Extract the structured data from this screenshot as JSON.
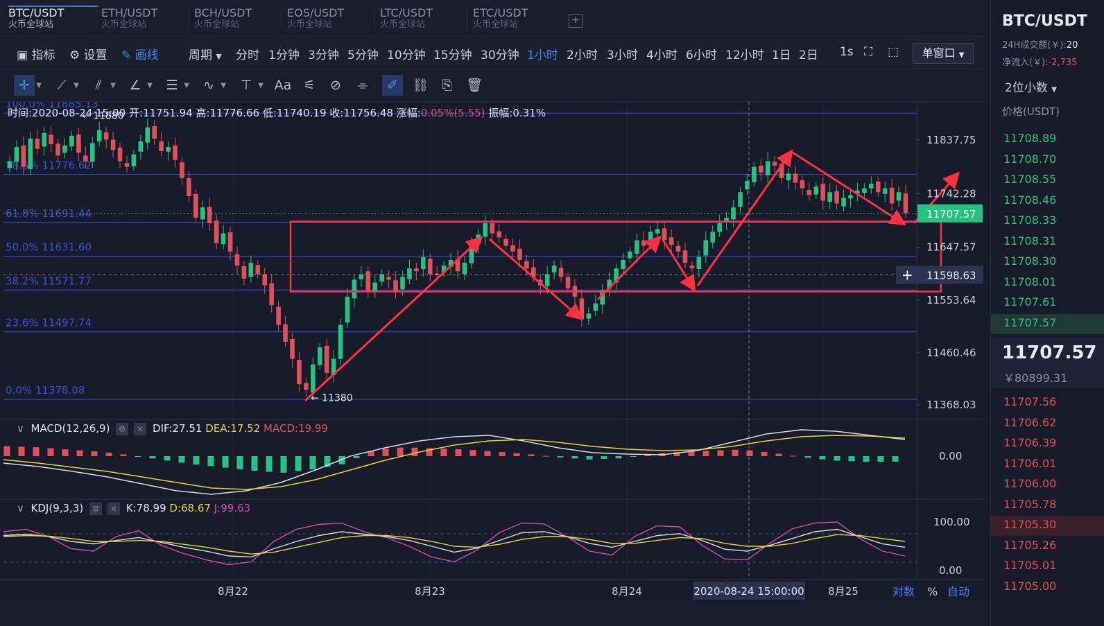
{
  "tabs": [
    {
      "pair": "BTC/USDT",
      "exchange": "火币全球站",
      "active": true
    },
    {
      "pair": "ETH/USDT",
      "exchange": "火币全球站",
      "active": false
    },
    {
      "pair": "BCH/USDT",
      "exchange": "火币全球站",
      "active": false
    },
    {
      "pair": "EOS/USDT",
      "exchange": "火币全球站",
      "active": false
    },
    {
      "pair": "LTC/USDT",
      "exchange": "火币全球站",
      "active": false
    },
    {
      "pair": "ETC/USDT",
      "exchange": "火币全球站",
      "active": false
    }
  ],
  "add_tab_label": "+",
  "toolbar": {
    "indicators": "指标",
    "settings": "设置",
    "draw": "画线",
    "period_label": "周期",
    "periods": [
      "分时",
      "1分钟",
      "3分钟",
      "5分钟",
      "10分钟",
      "15分钟",
      "30分钟",
      "1小时",
      "2小时",
      "3小时",
      "4小时",
      "6小时",
      "12小时",
      "1日",
      "2日"
    ],
    "active_period": "1小时",
    "refresh": "1s",
    "window_mode": "单窗口"
  },
  "info": {
    "time": "时间:2020-08-24 15:00",
    "open": "开:11751.94",
    "high": "高:11776.66",
    "low": "低:11740.19",
    "close": "收:11756.48",
    "change_label": "涨幅:",
    "change_value": "0.05%(5.55)",
    "amplitude": "振幅:0.31%"
  },
  "macd": {
    "label": "MACD(12,26,9)",
    "dif": "DIF:27.51",
    "dea": "DEA:17.52",
    "macd": "MACD:19.99"
  },
  "kdj": {
    "label": "KDJ(9,3,3)",
    "k": "K:78.99",
    "d": "D:68.67",
    "j": "J:99.63"
  },
  "colors": {
    "up": "#26c281",
    "down": "#e0505a",
    "fib": "#3344cc",
    "fib_text": "#3a4fd8",
    "annotation": "#ff3040",
    "dif": "#d8dbe6",
    "dea": "#e8d23a",
    "j_line": "#d04ab0",
    "bg": "#181b2a"
  },
  "chart_data": {
    "type": "candlestick",
    "pair": "BTC/USDT",
    "interval": "1小时",
    "y_ticks": [
      "11837.75",
      "11742.28",
      "11647.57",
      "11553.64",
      "11460.46",
      "11368.03"
    ],
    "x_ticks": [
      "8月22",
      "8月23",
      "8月24",
      "8月25"
    ],
    "ylim": [
      11345,
      11905
    ],
    "current_price": "11707.57",
    "crosshair_price": "11598.63",
    "crosshair_time": "2020-08-24 15:00:00",
    "high_marker": "← 11880",
    "low_marker": "← 11380",
    "fibonacci": [
      {
        "label": "100.0% 11885.13",
        "value": 11885.13
      },
      {
        "label": "78.6% 11776.62",
        "value": 11776.62
      },
      {
        "label": "61.8% 11691.44",
        "value": 11691.44
      },
      {
        "label": "50.0% 11631.60",
        "value": 11631.6
      },
      {
        "label": "38.2% 11571.77",
        "value": 11571.77
      },
      {
        "label": "23.6% 11497.74",
        "value": 11497.74
      },
      {
        "label": "0.0% 11378.08",
        "value": 11378.08
      }
    ],
    "candles_close": [
      11800,
      11825,
      11790,
      11840,
      11822,
      11850,
      11830,
      11810,
      11828,
      11845,
      11815,
      11800,
      11832,
      11855,
      11838,
      11820,
      11800,
      11790,
      11812,
      11835,
      11860,
      11840,
      11818,
      11825,
      11802,
      11770,
      11738,
      11700,
      11718,
      11690,
      11655,
      11672,
      11640,
      11615,
      11592,
      11620,
      11600,
      11580,
      11545,
      11510,
      11480,
      11450,
      11405,
      11395,
      11440,
      11470,
      11425,
      11450,
      11510,
      11560,
      11590,
      11600,
      11570,
      11585,
      11600,
      11590,
      11570,
      11595,
      11610,
      11605,
      11630,
      11600,
      11598,
      11615,
      11625,
      11605,
      11620,
      11650,
      11670,
      11690,
      11672,
      11665,
      11650,
      11640,
      11625,
      11610,
      11595,
      11580,
      11600,
      11615,
      11595,
      11575,
      11560,
      11520,
      11530,
      11548,
      11572,
      11590,
      11610,
      11625,
      11640,
      11660,
      11650,
      11675,
      11680,
      11660,
      11652,
      11640,
      11620,
      11610,
      11630,
      11660,
      11675,
      11690,
      11700,
      11718,
      11745,
      11765,
      11790,
      11780,
      11800,
      11792,
      11770,
      11778,
      11762,
      11752,
      11740,
      11755,
      11730,
      11745,
      11725,
      11735,
      11740,
      11748,
      11752,
      11760,
      11745,
      11752,
      11725,
      11745,
      11708
    ],
    "macd_dif": [
      -10,
      -15,
      -22,
      -30,
      -40,
      -50,
      -55,
      -50,
      -38,
      -20,
      0,
      12,
      22,
      28,
      30,
      22,
      12,
      5,
      3,
      2,
      8,
      20,
      32,
      38,
      36,
      30,
      24
    ],
    "macd_dea": [
      -5,
      -10,
      -16,
      -22,
      -30,
      -38,
      -46,
      -48,
      -44,
      -34,
      -20,
      -6,
      6,
      16,
      22,
      24,
      20,
      14,
      10,
      8,
      9,
      14,
      22,
      28,
      30,
      29,
      26
    ],
    "macd_hist": [
      18,
      16,
      12,
      8,
      2,
      -6,
      -14,
      -20,
      -26,
      -30,
      -24,
      -14,
      12,
      16,
      14,
      12,
      8,
      4,
      -2,
      -6,
      -4,
      4,
      8,
      10,
      12,
      6,
      -2,
      -8,
      -10,
      -10
    ],
    "kdj_k": [
      72,
      75,
      70,
      60,
      55,
      62,
      68,
      58,
      48,
      40,
      30,
      28,
      45,
      60,
      72,
      80,
      75,
      70,
      62,
      50,
      38,
      46,
      62,
      78,
      80,
      70,
      56,
      48,
      60,
      72,
      76,
      62,
      44,
      40,
      52,
      66,
      80,
      85,
      70,
      55,
      48
    ],
    "kdj_d": [
      70,
      72,
      71,
      66,
      60,
      60,
      62,
      60,
      54,
      48,
      40,
      34,
      38,
      48,
      58,
      68,
      72,
      72,
      68,
      60,
      50,
      48,
      54,
      64,
      70,
      70,
      64,
      56,
      56,
      62,
      68,
      66,
      56,
      50,
      50,
      56,
      66,
      74,
      72,
      66,
      60
    ],
    "kdj_j": [
      80,
      85,
      70,
      45,
      40,
      70,
      82,
      52,
      35,
      22,
      12,
      18,
      60,
      85,
      95,
      98,
      80,
      68,
      50,
      28,
      18,
      42,
      78,
      98,
      96,
      70,
      40,
      32,
      70,
      92,
      90,
      52,
      24,
      22,
      56,
      86,
      98,
      100,
      66,
      40,
      30
    ],
    "kdj_y_ticks": [
      "100.00",
      "0.00"
    ],
    "macd_y_tick": "0.00"
  },
  "annotations": {
    "zone_range": [
      11569,
      11693
    ]
  },
  "bottom_right": {
    "log": "对数",
    "percent": "%",
    "auto": "自动"
  },
  "right_panel": {
    "title": "BTC/USDT",
    "volume_label": "24H成交额(￥):",
    "volume_value": "20",
    "netflow_label": "净流入(￥):",
    "netflow_value": "-2,735",
    "decimals": "2位小数",
    "price_header": "价格(USDT)",
    "asks": [
      "11708.89",
      "11708.70",
      "11708.55",
      "11708.46",
      "11708.33",
      "11708.31",
      "11708.30",
      "11708.01",
      "11707.61",
      "11707.57"
    ],
    "last_price": "11707.57",
    "last_price_cny": "￥80899.31",
    "bids": [
      "11707.56",
      "11706.62",
      "11706.39",
      "11706.01",
      "11706.00",
      "11705.78",
      "11705.30",
      "11705.26",
      "11705.01",
      "11705.00"
    ]
  }
}
